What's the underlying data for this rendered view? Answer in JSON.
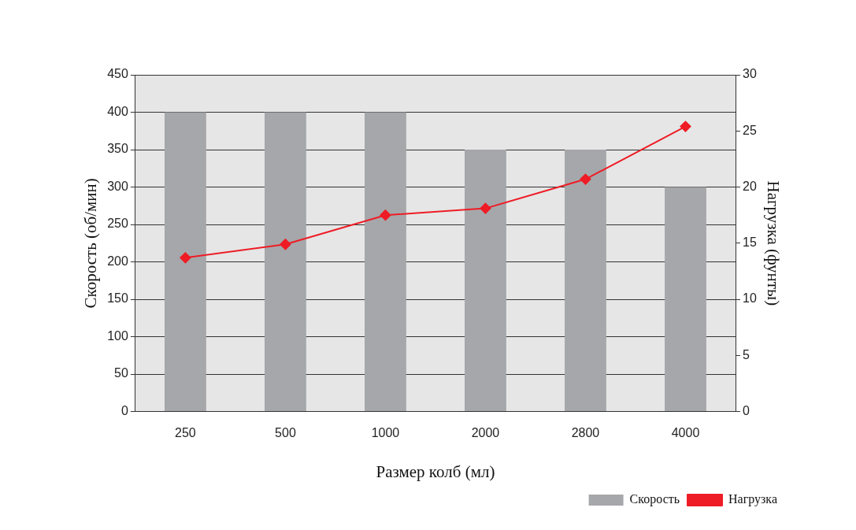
{
  "chart_data": {
    "type": "bar",
    "xlabel": "Размер колб (мл)",
    "ylabel": "Скорость (об/мин)",
    "y2label": "Нагрузка (фунты)",
    "categories": [
      "250",
      "500",
      "1000",
      "2000",
      "2800",
      "4000"
    ],
    "series": [
      {
        "name": "Скорость",
        "color": "#a6a7aa",
        "values": [
          400,
          400,
          400,
          350,
          350,
          300
        ]
      },
      {
        "name": "Нагрузка",
        "type": "line",
        "axis": "y2",
        "color": "#ee1c25",
        "values": [
          13.7,
          14.9,
          17.5,
          18.1,
          20.7,
          25.4
        ]
      }
    ],
    "ylim": [
      0,
      450
    ],
    "yticks": [
      0,
      50,
      100,
      150,
      200,
      250,
      300,
      350,
      400,
      450
    ],
    "y2lim": [
      0,
      30
    ],
    "y2ticks": [
      0,
      5,
      10,
      15,
      20,
      25,
      30
    ],
    "grid": "y",
    "legend": "bottom right",
    "marker": "diamond",
    "line_style": "solid"
  }
}
